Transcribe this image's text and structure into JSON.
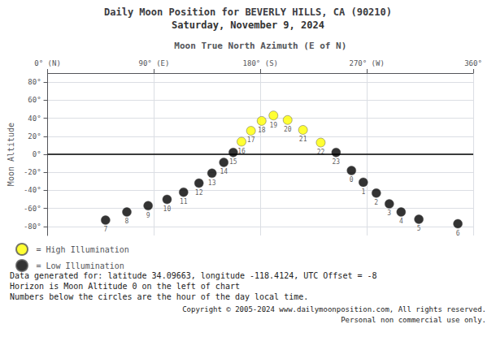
{
  "chart_data": {
    "type": "scatter",
    "title": "Daily Moon Position for BEVERLY HILLS, CA (90210)",
    "subtitle": "Saturday, November 9, 2024",
    "xlabel": "Moon True North Azimuth (E of N)",
    "ylabel": "Moon Altitude",
    "xlim": [
      0,
      360
    ],
    "ylim": [
      -90,
      90
    ],
    "xticks": [
      {
        "value": 0,
        "label": "0° (N)"
      },
      {
        "value": 90,
        "label": "90° (E)"
      },
      {
        "value": 180,
        "label": "180° (S)"
      },
      {
        "value": 270,
        "label": "270° (W)"
      },
      {
        "value": 360,
        "label": "360°"
      }
    ],
    "yticks": [
      {
        "value": -80,
        "label": "-80°"
      },
      {
        "value": -60,
        "label": "-60°"
      },
      {
        "value": -40,
        "label": "-40°"
      },
      {
        "value": -20,
        "label": "-20°"
      },
      {
        "value": 0,
        "label": "0°"
      },
      {
        "value": 20,
        "label": "20°"
      },
      {
        "value": 40,
        "label": "40°"
      },
      {
        "value": 60,
        "label": "60°"
      },
      {
        "value": 80,
        "label": "80°"
      }
    ],
    "grid": true,
    "legend": "bottom-left",
    "series": [
      {
        "name": "= High Illumination",
        "color": "#ffff00",
        "x": [
          164,
          172,
          181,
          191,
          203,
          216,
          231
        ],
        "values": [
          14,
          26,
          37,
          43,
          38,
          27,
          13
        ],
        "hours": [
          16,
          17,
          18,
          19,
          20,
          21,
          22
        ]
      },
      {
        "name": "= Low Illumination",
        "color": "#000000",
        "x": [
          49,
          67,
          85,
          101,
          115,
          128,
          139,
          149,
          157,
          244,
          257,
          267,
          278,
          289,
          299,
          314,
          347
        ],
        "values": [
          -73,
          -64,
          -57,
          -50,
          -42,
          -32,
          -21,
          -9,
          2,
          2,
          -18,
          -31,
          -43,
          -55,
          -64,
          -72,
          -77
        ],
        "hours": [
          7,
          8,
          9,
          10,
          11,
          12,
          13,
          14,
          15,
          23,
          0,
          1,
          2,
          3,
          4,
          5,
          6
        ]
      }
    ],
    "horizon": {
      "y": 0,
      "color": "#000000"
    },
    "notes": [
      "Data generated for: latitude 34.09663, longitude -118.4124, UTC Offset = -8",
      "Horizon is Moon Altitude 0 on the left of chart",
      "Numbers below the circles are the hour of the day local time."
    ],
    "credits": [
      "Copyright © 2005-2024 www.dailymoonposition.com, All rights reserved.",
      "Personal non commercial use only."
    ]
  }
}
